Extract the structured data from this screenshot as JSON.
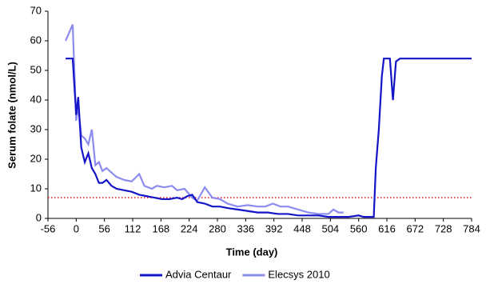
{
  "chart_data": {
    "type": "line",
    "x_label": "Time (day)",
    "y_label": "Serum folate (nmol/L)",
    "xlim": [
      -56,
      784
    ],
    "xticks": [
      -56,
      0,
      56,
      112,
      168,
      224,
      280,
      336,
      392,
      448,
      504,
      560,
      616,
      672,
      728,
      784
    ],
    "ylim": [
      0,
      70
    ],
    "yticks": [
      0,
      10,
      20,
      30,
      40,
      50,
      60,
      70
    ],
    "reference_line": {
      "value": 7,
      "color": "#e8262a"
    },
    "legend": "bottom",
    "series": [
      {
        "name": "Advia Centaur",
        "color": "#1414c8",
        "x": [
          -21,
          -7,
          0,
          4,
          10,
          17,
          24,
          31,
          38,
          45,
          52,
          60,
          70,
          80,
          95,
          110,
          125,
          140,
          155,
          170,
          185,
          200,
          210,
          220,
          230,
          240,
          255,
          270,
          285,
          300,
          320,
          340,
          360,
          380,
          400,
          420,
          440,
          460,
          480,
          500,
          520,
          540,
          560,
          570,
          590,
          594,
          600,
          606,
          610,
          622,
          628,
          634,
          642,
          784
        ],
        "values": [
          54,
          54,
          35,
          41,
          24,
          19,
          22,
          17,
          15,
          12,
          12,
          13,
          11,
          10,
          9.5,
          9,
          8,
          7.5,
          7,
          6.5,
          6.5,
          7,
          6.5,
          7.5,
          8,
          5.5,
          5,
          4,
          4,
          3.5,
          3,
          2.5,
          2,
          2,
          1.5,
          1.5,
          1,
          1,
          1,
          0.5,
          0.5,
          0.5,
          1,
          0.5,
          0.5,
          17,
          30,
          48,
          54,
          54,
          40,
          53,
          54,
          54
        ]
      },
      {
        "name": "Elecsys 2010",
        "color": "#8c8cf0",
        "x": [
          -21,
          -7,
          0,
          4,
          10,
          17,
          24,
          31,
          38,
          45,
          52,
          60,
          70,
          80,
          95,
          110,
          125,
          135,
          150,
          160,
          175,
          190,
          200,
          215,
          230,
          240,
          255,
          270,
          285,
          300,
          320,
          340,
          360,
          375,
          390,
          405,
          420,
          440,
          460,
          480,
          500,
          510,
          520,
          530
        ],
        "values": [
          60,
          65.5,
          33,
          38,
          28,
          27,
          25,
          30,
          18,
          19,
          16,
          17,
          15.5,
          14,
          13,
          12.5,
          15,
          11,
          10,
          11,
          10.5,
          11,
          9.5,
          10,
          7,
          6,
          10.5,
          7,
          6.5,
          5,
          4,
          4.5,
          4,
          4,
          5,
          4,
          4,
          3,
          2,
          1.5,
          1.5,
          3,
          2,
          2
        ]
      }
    ]
  }
}
